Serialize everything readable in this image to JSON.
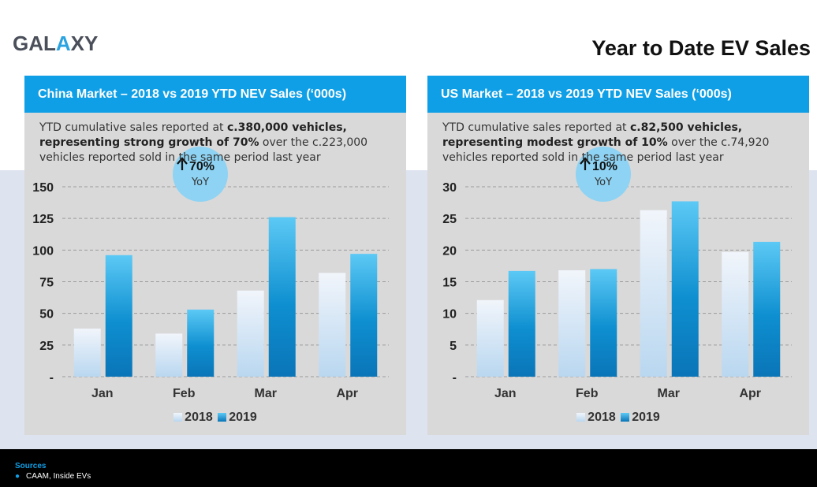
{
  "header": {
    "logo_text_a": "GAL",
    "logo_text_x": "A",
    "logo_text_b": "XY",
    "title": "Year to Date EV Sales"
  },
  "colors": {
    "accent": "#0f9fe6",
    "bar_2018_top": "#f1f5fb",
    "bar_2018_bottom": "#b9d7f0",
    "bar_2019_top": "#5cc9f5",
    "bar_2019_mid": "#0e8fd0",
    "bar_2019_bottom": "#0a75b8",
    "badge": "#8ed3f3"
  },
  "panels": [
    {
      "title": "China Market – 2018 vs 2019 YTD NEV Sales (‘000s)",
      "desc_line1_plain": "YTD cumulative sales reported at ",
      "desc_line1_bold": "c.380,000 vehicles,",
      "desc_line2_bold": "representing strong growth of 70%",
      "desc_line2_plain": " over the c.223,000",
      "desc_line3_plain": "vehicles reported sold in the same period last year",
      "badge_value": "70%",
      "badge_label": "YoY",
      "legend": [
        "2018",
        "2019"
      ]
    },
    {
      "title": "US Market – 2018 vs 2019 YTD NEV Sales (‘000s)",
      "desc_line1_plain": "YTD cumulative sales reported at ",
      "desc_line1_bold": "c.82,500 vehicles,",
      "desc_line2_bold": "representing modest growth of 10%",
      "desc_line2_plain": " over the c.74,920",
      "desc_line3_plain": "vehicles reported sold in the same period last year",
      "badge_value": "10%",
      "badge_label": "YoY",
      "legend": [
        "2018",
        "2019"
      ]
    }
  ],
  "chart_data": [
    {
      "type": "bar",
      "categories": [
        "Jan",
        "Feb",
        "Mar",
        "Apr"
      ],
      "series": [
        {
          "name": "2018",
          "values": [
            38,
            34,
            68,
            82
          ]
        },
        {
          "name": "2019",
          "values": [
            96,
            53,
            126,
            97
          ]
        }
      ],
      "yticks": [
        "-",
        "25",
        "50",
        "75",
        "100",
        "125",
        "150"
      ],
      "ylim": [
        0,
        150
      ],
      "grid": true,
      "legend_position": "bottom"
    },
    {
      "type": "bar",
      "categories": [
        "Jan",
        "Feb",
        "Mar",
        "Apr"
      ],
      "series": [
        {
          "name": "2018",
          "values": [
            12.1,
            16.8,
            26.3,
            19.7
          ]
        },
        {
          "name": "2019",
          "values": [
            16.7,
            17.0,
            27.7,
            21.3
          ]
        }
      ],
      "yticks": [
        "-",
        "5",
        "10",
        "15",
        "20",
        "25",
        "30"
      ],
      "ylim": [
        0,
        30
      ],
      "grid": true,
      "legend_position": "bottom"
    }
  ],
  "footer": {
    "sources_title": "Sources",
    "sources_item": "CAAM, Inside EVs"
  }
}
